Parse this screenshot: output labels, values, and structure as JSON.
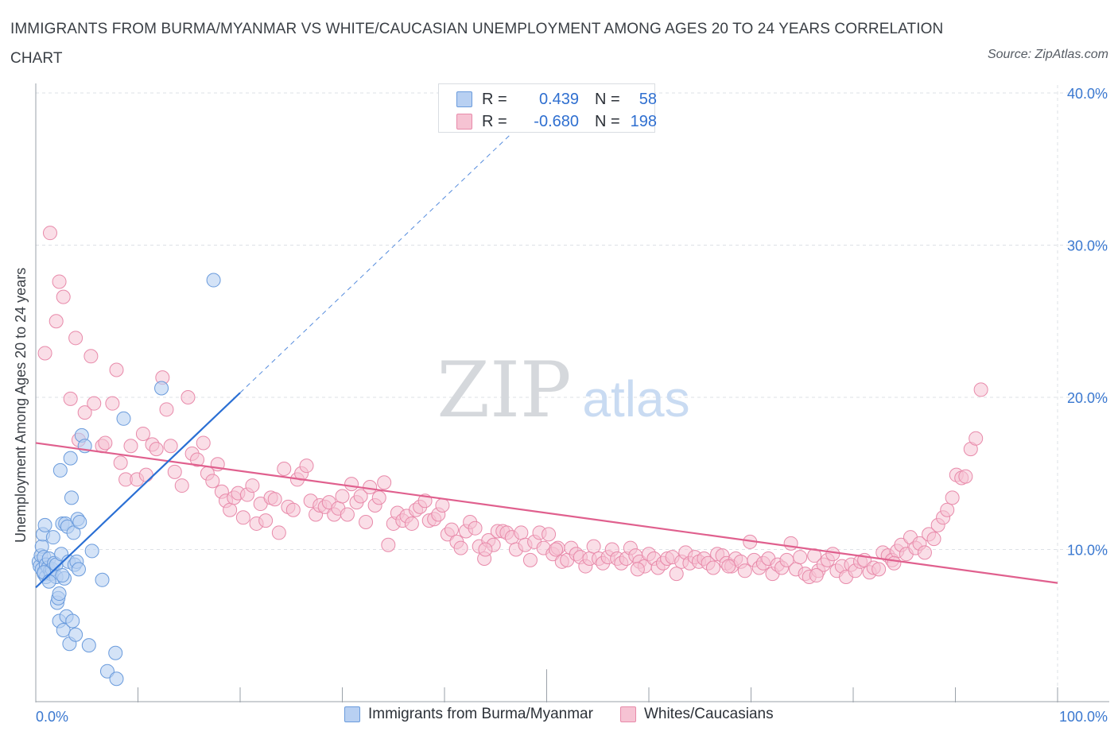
{
  "title": "IMMIGRANTS FROM BURMA/MYANMAR VS WHITE/CAUCASIAN UNEMPLOYMENT AMONG AGES 20 TO 24 YEARS CORRELATION CHART",
  "source": "Source: ZipAtlas.com",
  "watermark": {
    "zip": "ZIP",
    "atlas": "atlas"
  },
  "colors": {
    "blue_fill": "#b8d0f2",
    "blue_stroke": "#6a9bdc",
    "blue_line": "#2a6fd4",
    "pink_fill": "#f6c3d3",
    "pink_stroke": "#e88aaa",
    "pink_line": "#e0608e",
    "axis_label": "#3a78d0",
    "grid": "#dde1e6"
  },
  "legend": {
    "r_label": "R =",
    "n_label": "N =",
    "series1": {
      "r": "0.439",
      "n": "58"
    },
    "series2": {
      "r": "-0.680",
      "n": "198"
    }
  },
  "chart_data": {
    "type": "scatter",
    "xlabel": "",
    "ylabel": "Unemployment Among Ages 20 to 24 years",
    "xlim": [
      0,
      100
    ],
    "ylim": [
      0,
      40
    ],
    "x_tick_labels": [
      "0.0%",
      "100.0%"
    ],
    "y_ticks": [
      10,
      20,
      30,
      40
    ],
    "y_tick_labels": [
      "10.0%",
      "20.0%",
      "30.0%",
      "40.0%"
    ],
    "grid": true,
    "series": [
      {
        "name": "Immigrants from Burma/Myanmar",
        "r": 0.439,
        "n": 58,
        "trend": {
          "x": [
            0,
            20
          ],
          "y": [
            7.5,
            20.3
          ],
          "extended_x": [
            20,
            46.5
          ],
          "extended_y": [
            20.3,
            37.3
          ]
        },
        "points": [
          [
            0.3,
            9.2
          ],
          [
            0.4,
            8.9
          ],
          [
            0.5,
            9.6
          ],
          [
            0.6,
            8.7
          ],
          [
            0.6,
            10.2
          ],
          [
            0.7,
            11.0
          ],
          [
            0.8,
            9.5
          ],
          [
            0.8,
            8.4
          ],
          [
            0.9,
            11.6
          ],
          [
            1.0,
            9.0
          ],
          [
            1.0,
            8.2
          ],
          [
            1.2,
            8.8
          ],
          [
            1.3,
            9.4
          ],
          [
            1.4,
            8.6
          ],
          [
            1.5,
            8.4
          ],
          [
            1.6,
            8.7
          ],
          [
            1.7,
            10.8
          ],
          [
            1.8,
            9.1
          ],
          [
            2.0,
            9.0
          ],
          [
            2.0,
            8.2
          ],
          [
            2.1,
            6.5
          ],
          [
            2.2,
            6.8
          ],
          [
            2.3,
            7.1
          ],
          [
            2.3,
            5.3
          ],
          [
            2.4,
            15.2
          ],
          [
            2.5,
            9.7
          ],
          [
            2.6,
            11.7
          ],
          [
            2.7,
            4.7
          ],
          [
            2.8,
            8.1
          ],
          [
            2.9,
            11.7
          ],
          [
            3.0,
            5.6
          ],
          [
            3.1,
            11.5
          ],
          [
            3.2,
            9.2
          ],
          [
            3.3,
            3.8
          ],
          [
            3.4,
            16.0
          ],
          [
            3.5,
            13.4
          ],
          [
            3.6,
            5.3
          ],
          [
            3.7,
            11.1
          ],
          [
            3.8,
            9.0
          ],
          [
            3.9,
            4.4
          ],
          [
            4.0,
            9.2
          ],
          [
            4.1,
            12.0
          ],
          [
            4.2,
            8.7
          ],
          [
            4.3,
            11.8
          ],
          [
            4.5,
            17.5
          ],
          [
            4.8,
            16.8
          ],
          [
            5.2,
            3.7
          ],
          [
            5.5,
            9.9
          ],
          [
            6.5,
            8.0
          ],
          [
            7.0,
            2.0
          ],
          [
            7.8,
            3.2
          ],
          [
            7.9,
            1.5
          ],
          [
            8.6,
            18.6
          ],
          [
            12.3,
            20.6
          ],
          [
            17.4,
            27.7
          ],
          [
            0.8,
            8.5
          ],
          [
            1.3,
            7.9
          ],
          [
            2.6,
            8.3
          ]
        ]
      },
      {
        "name": "Whites/Caucasians",
        "r": -0.68,
        "n": 198,
        "trend": {
          "x": [
            0,
            100
          ],
          "y": [
            17.0,
            7.8
          ]
        },
        "points": [
          [
            0.9,
            22.9
          ],
          [
            1.4,
            30.8
          ],
          [
            2.0,
            25.0
          ],
          [
            2.3,
            27.6
          ],
          [
            2.7,
            26.6
          ],
          [
            3.4,
            19.9
          ],
          [
            3.9,
            23.9
          ],
          [
            4.2,
            17.2
          ],
          [
            4.8,
            19.0
          ],
          [
            5.4,
            22.7
          ],
          [
            5.7,
            19.6
          ],
          [
            6.5,
            16.8
          ],
          [
            6.8,
            17.0
          ],
          [
            7.5,
            19.6
          ],
          [
            7.9,
            21.8
          ],
          [
            8.3,
            15.7
          ],
          [
            8.8,
            14.6
          ],
          [
            9.3,
            16.8
          ],
          [
            9.9,
            14.6
          ],
          [
            10.5,
            17.6
          ],
          [
            10.8,
            14.9
          ],
          [
            11.4,
            16.9
          ],
          [
            11.8,
            16.6
          ],
          [
            12.4,
            21.3
          ],
          [
            12.8,
            19.2
          ],
          [
            13.2,
            16.8
          ],
          [
            13.6,
            15.1
          ],
          [
            14.3,
            14.2
          ],
          [
            14.9,
            20.0
          ],
          [
            15.3,
            16.3
          ],
          [
            15.8,
            15.9
          ],
          [
            16.4,
            17.0
          ],
          [
            16.8,
            15.0
          ],
          [
            17.3,
            14.5
          ],
          [
            17.8,
            15.6
          ],
          [
            18.2,
            13.8
          ],
          [
            18.6,
            13.2
          ],
          [
            19.0,
            12.6
          ],
          [
            19.4,
            13.4
          ],
          [
            19.8,
            13.7
          ],
          [
            20.3,
            12.1
          ],
          [
            20.7,
            13.6
          ],
          [
            21.2,
            14.2
          ],
          [
            21.6,
            11.7
          ],
          [
            22.0,
            13.0
          ],
          [
            22.5,
            11.9
          ],
          [
            23.0,
            13.4
          ],
          [
            23.4,
            13.3
          ],
          [
            23.8,
            11.1
          ],
          [
            24.3,
            15.3
          ],
          [
            24.7,
            12.8
          ],
          [
            25.2,
            12.6
          ],
          [
            25.6,
            14.6
          ],
          [
            26.0,
            15.0
          ],
          [
            26.5,
            15.5
          ],
          [
            26.9,
            13.2
          ],
          [
            27.4,
            12.3
          ],
          [
            27.8,
            12.9
          ],
          [
            28.3,
            12.8
          ],
          [
            28.7,
            13.1
          ],
          [
            29.2,
            12.3
          ],
          [
            29.6,
            12.7
          ],
          [
            30.0,
            13.5
          ],
          [
            30.5,
            12.3
          ],
          [
            30.9,
            14.3
          ],
          [
            31.4,
            13.1
          ],
          [
            31.8,
            13.5
          ],
          [
            32.3,
            11.8
          ],
          [
            32.7,
            14.1
          ],
          [
            33.2,
            12.9
          ],
          [
            33.6,
            13.4
          ],
          [
            34.1,
            14.4
          ],
          [
            34.5,
            10.3
          ],
          [
            35.0,
            11.7
          ],
          [
            35.4,
            12.4
          ],
          [
            35.9,
            11.9
          ],
          [
            36.3,
            12.2
          ],
          [
            36.8,
            11.7
          ],
          [
            37.2,
            12.6
          ],
          [
            37.6,
            12.8
          ],
          [
            38.1,
            13.2
          ],
          [
            38.5,
            11.9
          ],
          [
            39.0,
            12.0
          ],
          [
            39.4,
            12.3
          ],
          [
            39.8,
            12.9
          ],
          [
            40.3,
            11.0
          ],
          [
            40.7,
            11.3
          ],
          [
            41.2,
            10.5
          ],
          [
            41.6,
            10.1
          ],
          [
            42.1,
            11.2
          ],
          [
            42.5,
            11.8
          ],
          [
            43.0,
            11.4
          ],
          [
            43.4,
            10.2
          ],
          [
            43.9,
            9.4
          ],
          [
            44.3,
            10.6
          ],
          [
            44.8,
            10.3
          ],
          [
            45.2,
            11.2
          ],
          [
            45.7,
            11.2
          ],
          [
            46.1,
            11.1
          ],
          [
            46.6,
            10.8
          ],
          [
            47.0,
            10.0
          ],
          [
            47.5,
            11.1
          ],
          [
            47.9,
            10.3
          ],
          [
            48.4,
            9.3
          ],
          [
            48.8,
            10.5
          ],
          [
            49.3,
            11.1
          ],
          [
            49.7,
            10.1
          ],
          [
            50.2,
            11.0
          ],
          [
            50.6,
            9.7
          ],
          [
            51.1,
            10.1
          ],
          [
            51.5,
            9.2
          ],
          [
            52.0,
            9.3
          ],
          [
            52.4,
            10.1
          ],
          [
            52.9,
            9.7
          ],
          [
            53.3,
            9.5
          ],
          [
            53.8,
            8.9
          ],
          [
            54.2,
            9.4
          ],
          [
            54.6,
            10.2
          ],
          [
            55.1,
            9.4
          ],
          [
            55.5,
            9.1
          ],
          [
            56.0,
            9.5
          ],
          [
            56.4,
            10.0
          ],
          [
            56.9,
            9.4
          ],
          [
            57.3,
            9.1
          ],
          [
            57.8,
            9.4
          ],
          [
            58.2,
            10.1
          ],
          [
            58.7,
            9.6
          ],
          [
            59.1,
            9.2
          ],
          [
            59.6,
            8.9
          ],
          [
            60.0,
            9.7
          ],
          [
            60.5,
            9.4
          ],
          [
            60.9,
            8.8
          ],
          [
            61.4,
            9.1
          ],
          [
            61.8,
            9.4
          ],
          [
            62.3,
            9.5
          ],
          [
            62.7,
            8.4
          ],
          [
            63.2,
            9.2
          ],
          [
            63.6,
            9.8
          ],
          [
            64.0,
            9.1
          ],
          [
            64.5,
            9.5
          ],
          [
            64.9,
            9.2
          ],
          [
            65.4,
            9.4
          ],
          [
            65.8,
            9.1
          ],
          [
            66.3,
            8.8
          ],
          [
            66.7,
            9.7
          ],
          [
            67.2,
            9.6
          ],
          [
            67.6,
            9.1
          ],
          [
            68.1,
            8.9
          ],
          [
            68.5,
            9.4
          ],
          [
            69.0,
            9.2
          ],
          [
            69.4,
            8.6
          ],
          [
            69.9,
            10.5
          ],
          [
            70.3,
            9.3
          ],
          [
            70.8,
            8.8
          ],
          [
            71.2,
            9.1
          ],
          [
            71.7,
            9.4
          ],
          [
            72.1,
            8.4
          ],
          [
            72.6,
            9.0
          ],
          [
            73.0,
            8.8
          ],
          [
            73.5,
            9.3
          ],
          [
            73.9,
            10.4
          ],
          [
            74.4,
            8.7
          ],
          [
            74.8,
            9.5
          ],
          [
            75.3,
            8.4
          ],
          [
            75.7,
            8.2
          ],
          [
            76.2,
            9.6
          ],
          [
            76.6,
            8.6
          ],
          [
            77.1,
            9.0
          ],
          [
            77.5,
            9.3
          ],
          [
            78.0,
            9.7
          ],
          [
            78.4,
            8.6
          ],
          [
            78.9,
            8.9
          ],
          [
            79.3,
            8.2
          ],
          [
            79.8,
            9.0
          ],
          [
            80.2,
            8.6
          ],
          [
            80.7,
            9.2
          ],
          [
            81.1,
            9.3
          ],
          [
            81.6,
            8.5
          ],
          [
            82.0,
            8.8
          ],
          [
            82.5,
            8.7
          ],
          [
            82.9,
            9.8
          ],
          [
            83.4,
            9.6
          ],
          [
            83.8,
            9.3
          ],
          [
            84.3,
            9.9
          ],
          [
            84.7,
            10.3
          ],
          [
            85.2,
            9.7
          ],
          [
            85.6,
            10.8
          ],
          [
            86.1,
            10.1
          ],
          [
            86.5,
            10.4
          ],
          [
            87.0,
            9.8
          ],
          [
            87.4,
            11.0
          ],
          [
            87.9,
            10.7
          ],
          [
            88.3,
            11.6
          ],
          [
            88.8,
            12.1
          ],
          [
            89.2,
            12.6
          ],
          [
            89.7,
            13.4
          ],
          [
            90.1,
            14.9
          ],
          [
            90.6,
            14.7
          ],
          [
            91.0,
            14.8
          ],
          [
            91.5,
            16.6
          ],
          [
            92.0,
            17.3
          ],
          [
            92.5,
            20.5
          ],
          [
            84.0,
            9.1
          ],
          [
            76.4,
            8.3
          ],
          [
            67.8,
            8.9
          ],
          [
            58.9,
            8.7
          ],
          [
            50.9,
            10.0
          ],
          [
            44.0,
            10.0
          ]
        ]
      }
    ]
  },
  "bottom_legend": [
    "Immigrants from Burma/Myanmar",
    "Whites/Caucasians"
  ]
}
